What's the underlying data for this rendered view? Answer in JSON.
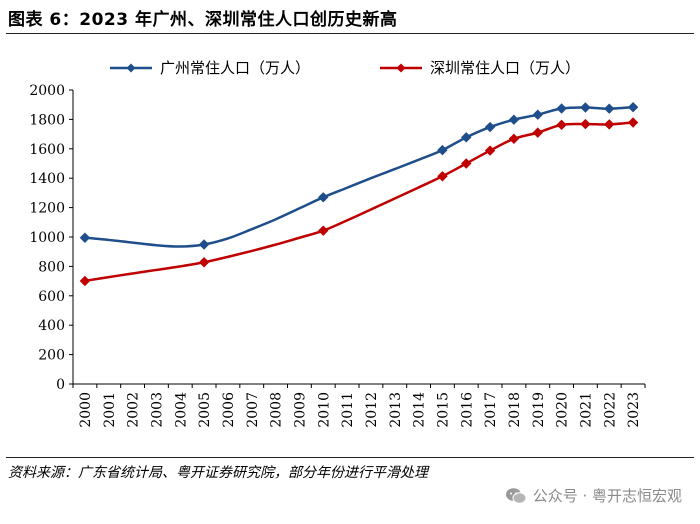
{
  "header": {
    "title": "图表 6：2023 年广州、深圳常住人口创历史新高"
  },
  "footer": {
    "source": "资料来源：广东省统计局、粤开证券研究院，部分年份进行平滑处理",
    "watermark": "公众号 · 粤开志恒宏观"
  },
  "colors": {
    "guangzhou": "#1F4E8C",
    "shenzhen": "#C00000",
    "axis": "#000000"
  },
  "chart_data": {
    "type": "line",
    "title": "图表 6：2023 年广州、深圳常住人口创历史新高",
    "xlabel": "",
    "ylabel": "",
    "ylim": [
      0,
      2000
    ],
    "yticks": [
      0,
      200,
      400,
      600,
      800,
      1000,
      1200,
      1400,
      1600,
      1800,
      2000
    ],
    "categories": [
      "2000",
      "2001",
      "2002",
      "2003",
      "2004",
      "2005",
      "2006",
      "2007",
      "2008",
      "2009",
      "2010",
      "2011",
      "2012",
      "2013",
      "2014",
      "2015",
      "2016",
      "2017",
      "2018",
      "2019",
      "2020",
      "2021",
      "2022",
      "2023"
    ],
    "legend_position": "top",
    "series": [
      {
        "name": "广州常住人口（万人）",
        "color": "#1F4E8C",
        "marker": "diamond",
        "values": [
          995,
          980,
          962,
          944,
          935,
          949,
          990,
          1053,
          1120,
          1195,
          1270,
          1335,
          1400,
          1462,
          1525,
          1591,
          1678,
          1748,
          1798,
          1832,
          1874,
          1881,
          1873,
          1883
        ],
        "marked_indices": [
          0,
          5,
          10,
          15,
          16,
          17,
          18,
          19,
          20,
          21,
          22,
          23
        ]
      },
      {
        "name": "深圳常住人口（万人）",
        "color": "#C00000",
        "marker": "diamond",
        "values": [
          701,
          727,
          752,
          776,
          800,
          828,
          865,
          905,
          948,
          995,
          1043,
          1113,
          1187,
          1262,
          1337,
          1413,
          1500,
          1588,
          1668,
          1710,
          1763,
          1768,
          1766,
          1779
        ],
        "marked_indices": [
          0,
          5,
          10,
          15,
          16,
          17,
          18,
          19,
          20,
          21,
          22,
          23
        ]
      }
    ]
  }
}
